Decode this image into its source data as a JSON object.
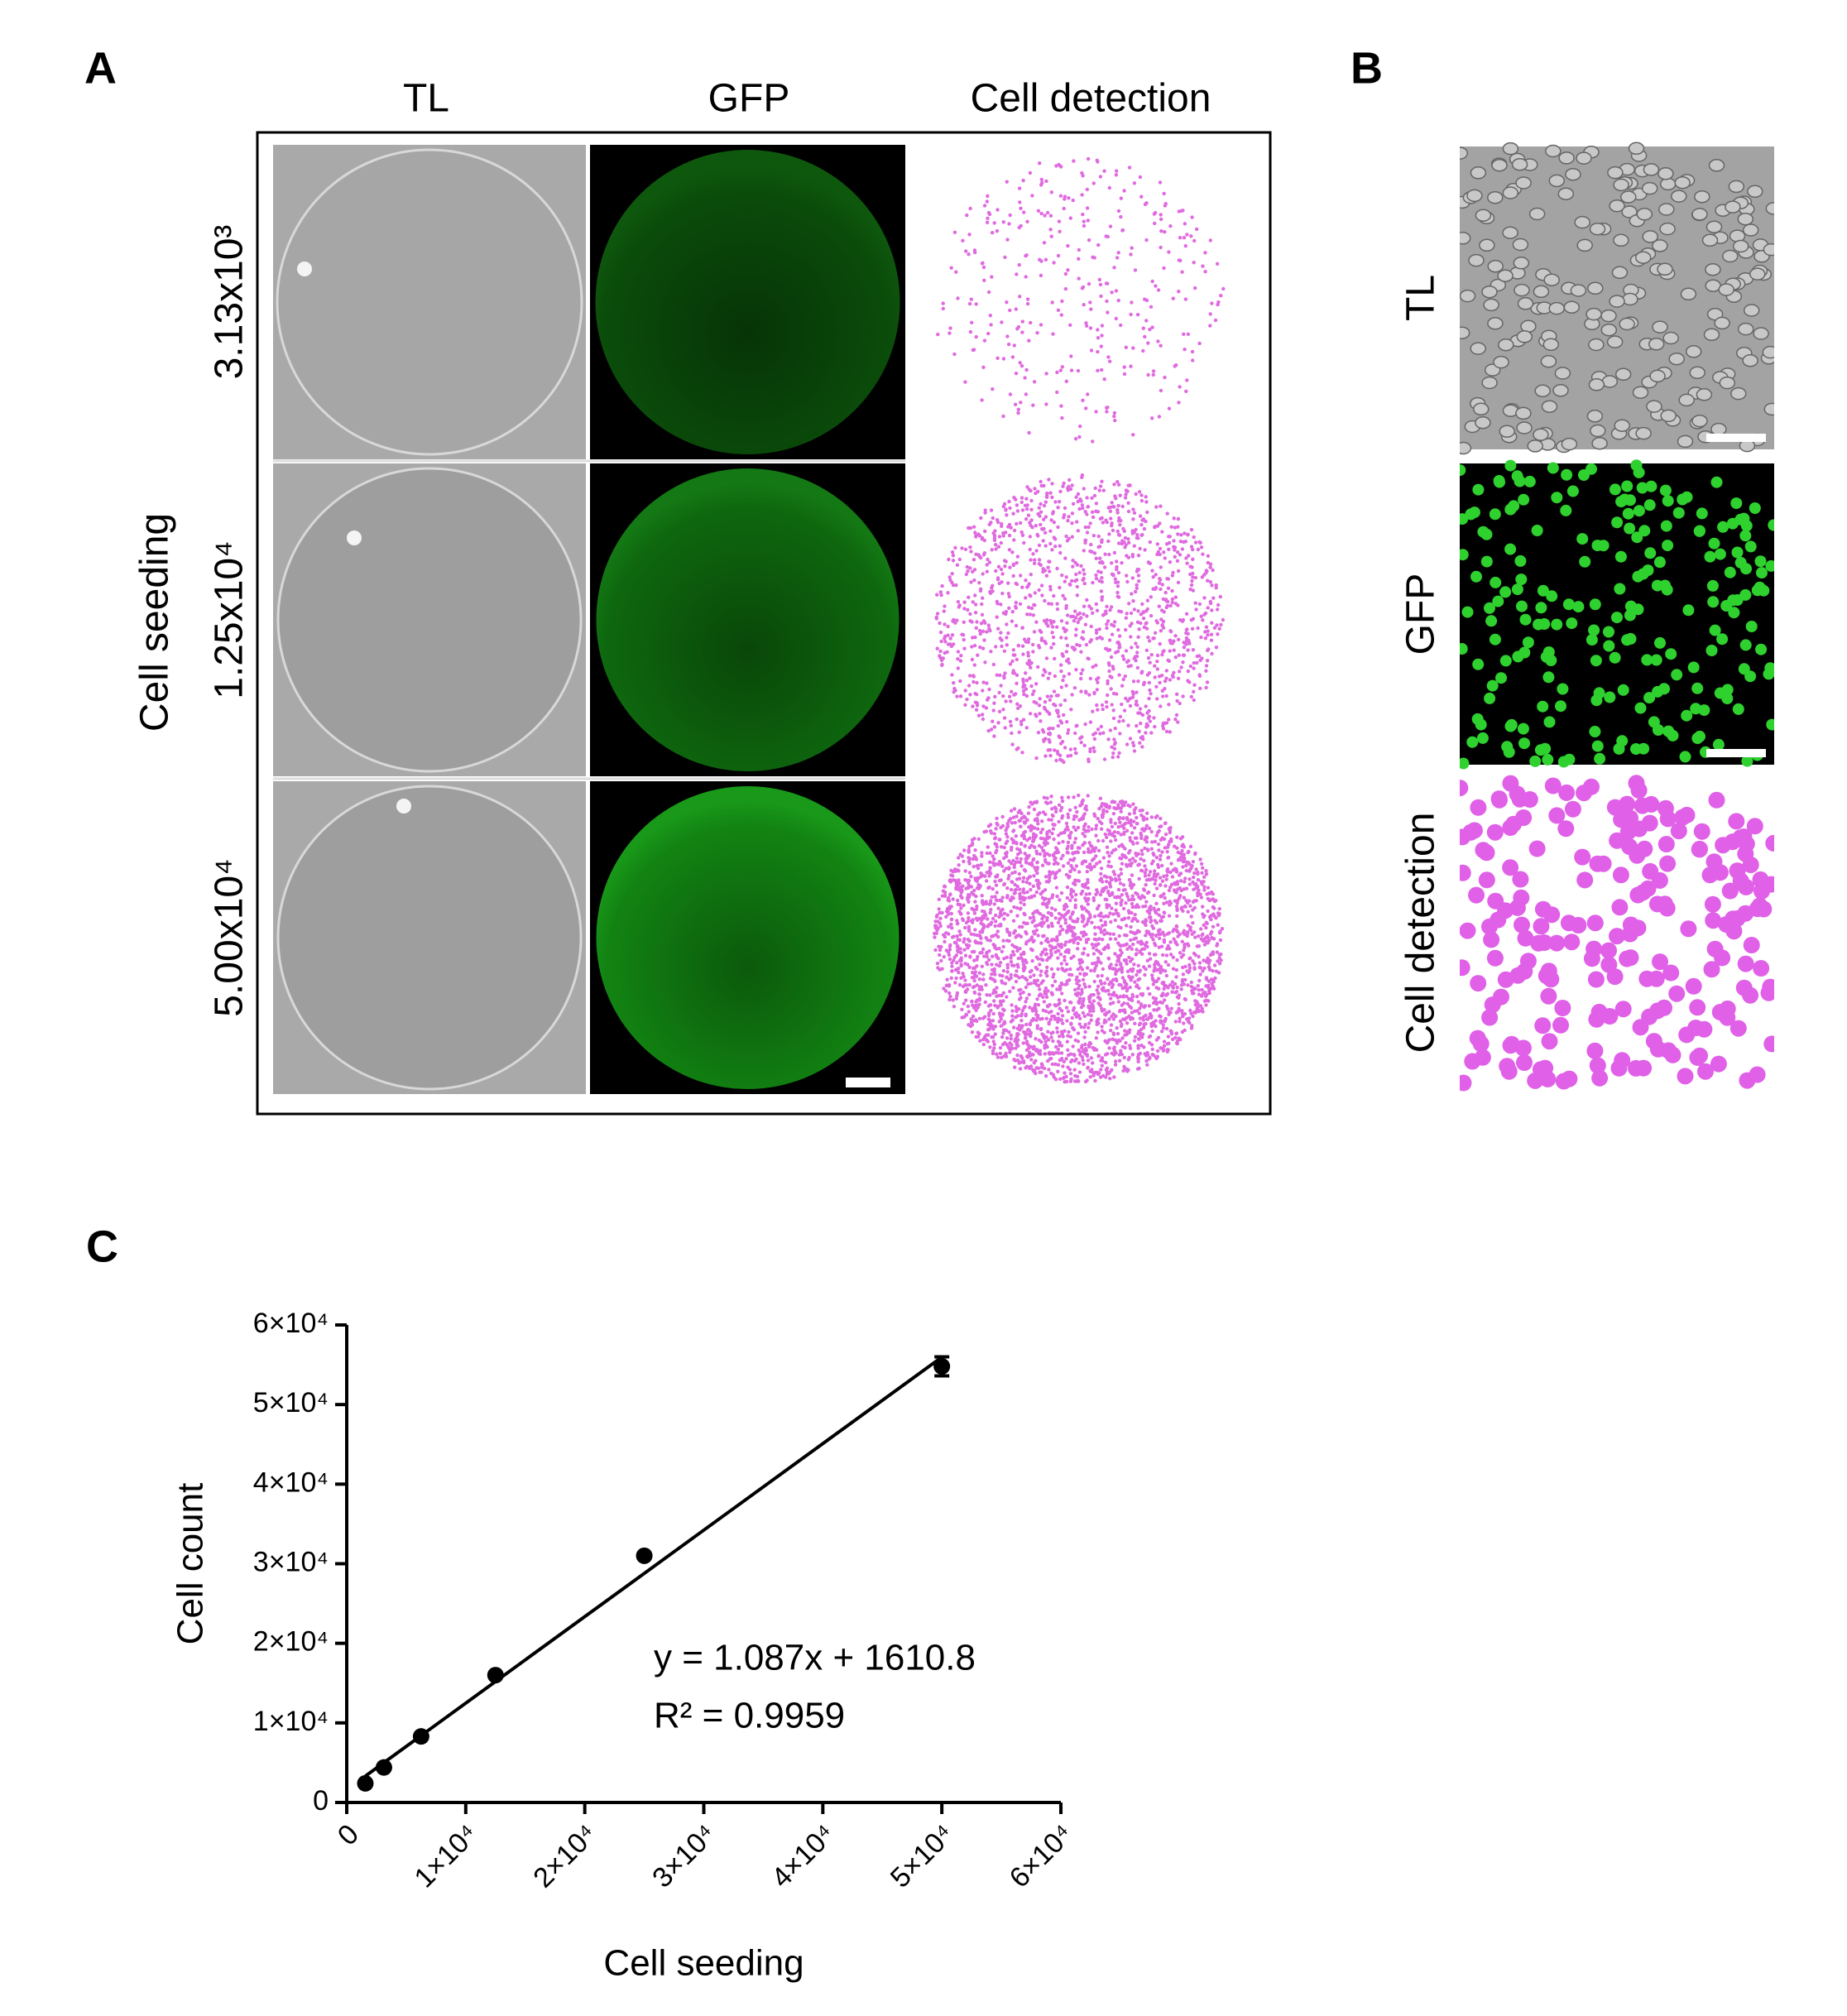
{
  "panel_a": {
    "label": "A",
    "columns": [
      "TL",
      "GFP",
      "Cell detection"
    ],
    "row_title": "Cell seeding",
    "rows": [
      "3.13x10³",
      "1.25x10⁴",
      "5.00x10⁴"
    ]
  },
  "panel_b": {
    "label": "B",
    "rows": [
      "TL",
      "GFP",
      "Cell detection"
    ]
  },
  "panel_c": {
    "label": "C"
  },
  "chart_data": {
    "type": "scatter",
    "x_label": "Cell seeding",
    "y_label": "Cell count",
    "x": [
      1563,
      3125,
      6250,
      12500,
      25000,
      50000
    ],
    "series": [
      {
        "color": "#000000",
        "values": [
          2400,
          4400,
          8300,
          16000,
          31000,
          54800
        ],
        "errors": [
          null,
          null,
          null,
          null,
          null,
          1200
        ]
      }
    ],
    "fit": {
      "slope": 1.087,
      "intercept": 1610.8,
      "equation": "y = 1.087x  + 1610.8",
      "r_squared": "R² = 0.9959"
    },
    "xlim": [
      0,
      60000
    ],
    "ylim": [
      0,
      60000
    ],
    "xticks": [
      0,
      {
        "value": 10000,
        "label": "1×10⁴"
      },
      {
        "value": 20000,
        "label": "2×10⁴"
      },
      {
        "value": 30000,
        "label": "3×10⁴"
      },
      {
        "value": 40000,
        "label": "4×10⁴"
      },
      {
        "value": 50000,
        "label": "5×10⁴"
      },
      {
        "value": 60000,
        "label": "6×10⁴"
      }
    ],
    "yticks": [
      0,
      {
        "value": 10000,
        "label": "1×10⁴"
      },
      {
        "value": 20000,
        "label": "2×10⁴"
      },
      {
        "value": 30000,
        "label": "3×10⁴"
      },
      {
        "value": 40000,
        "label": "4×10⁴"
      },
      {
        "value": 50000,
        "label": "5×10⁴"
      },
      {
        "value": 60000,
        "label": "6×10⁴"
      }
    ]
  }
}
